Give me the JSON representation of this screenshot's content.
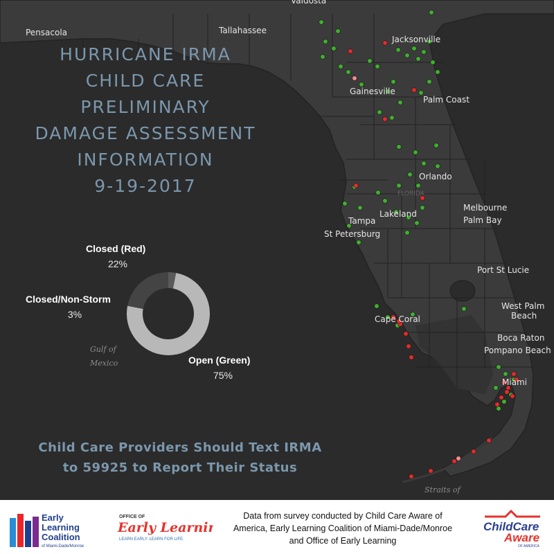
{
  "map": {
    "cities": [
      {
        "name": "Valdosta"
      },
      {
        "name": "Pensacola"
      },
      {
        "name": "Tallahassee"
      },
      {
        "name": "Jacksonville"
      },
      {
        "name": "Gainesville"
      },
      {
        "name": "Palm Coast"
      },
      {
        "name": "Orlando"
      },
      {
        "name": "FLORIDA"
      },
      {
        "name": "Melbourne"
      },
      {
        "name": "Palm Bay"
      },
      {
        "name": "Lakeland"
      },
      {
        "name": "Tampa"
      },
      {
        "name": "St Petersburg"
      },
      {
        "name": "Port St Lucie"
      },
      {
        "name": "West Palm"
      },
      {
        "name": "Beach"
      },
      {
        "name": "Cape Coral"
      },
      {
        "name": "Boca Raton"
      },
      {
        "name": "Pompano Beach"
      },
      {
        "name": "Miami"
      }
    ],
    "water_labels": {
      "gulf_line1": "Gulf of",
      "gulf_line2": "Mexico",
      "straits_line1": "Straits of"
    },
    "colors": {
      "land": "#3b3b3b",
      "water": "#2b2b2b",
      "county_lines": "#1f1f1f",
      "open": "#3fb02e",
      "closed": "#e52b2b",
      "closed_non_storm": "#f08f8f"
    }
  },
  "title": {
    "lines": [
      "HURRICANE IRMA",
      "CHILD CARE",
      "PRELIMINARY",
      "DAMAGE ASSESSMENT",
      "INFORMATION",
      "9-19-2017"
    ]
  },
  "chart_data": {
    "type": "pie",
    "labels": [
      "Closed (Red)",
      "Closed/Non-Storm",
      "Open (Green)"
    ],
    "values": [
      22,
      3,
      75
    ],
    "display_values": [
      "22%",
      "3%",
      "75%"
    ],
    "colors": [
      "#444444",
      "#5a5a5a",
      "#b8b8b8"
    ],
    "donut": true
  },
  "cta": {
    "line1": "Child Care Providers Should Text IRMA",
    "line2": "to 59925 to Report Their Status"
  },
  "footer": {
    "credit_line1": "Data from survey conducted by Child Care Aware of",
    "credit_line2": "America, Early Learning Coalition of Miami-Dade/Monroe",
    "credit_line3": "and Office of Early Learning",
    "logos": {
      "elc": {
        "line1": "Early",
        "line2": "Learning",
        "line3": "Coalition",
        "line4": "of Miami-Dade/Monroe"
      },
      "oel": {
        "top": "OFFICE OF",
        "main": "Early Learning",
        "tagline": "LEARN EARLY. LEARN FOR LIFE."
      },
      "ccaa": {
        "main1": "ChildCare",
        "main2": "Aware",
        "sub": "OF AMERICA"
      }
    }
  }
}
